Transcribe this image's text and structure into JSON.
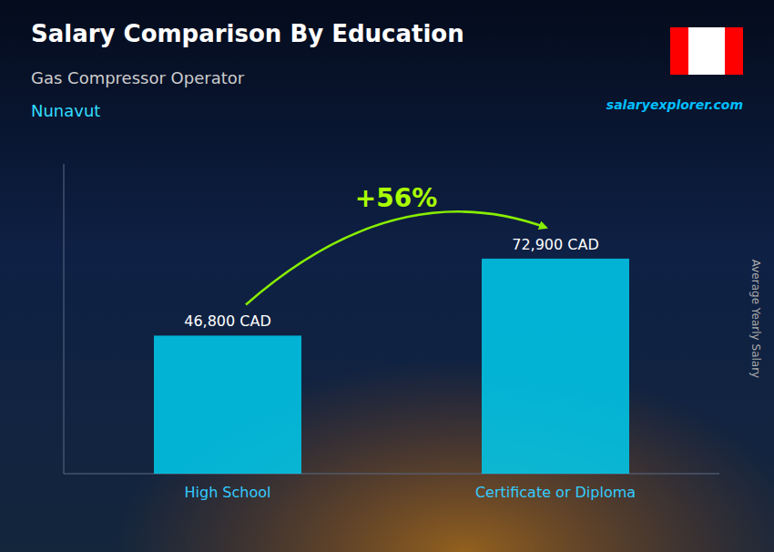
{
  "chart_data": {
    "type": "bar",
    "title": "Salary Comparison By Education",
    "subtitle": "Gas Compressor Operator",
    "region": "Nunavut",
    "source": "salaryexplorer.com",
    "y_label": "Average Yearly Salary",
    "annotation": "+56%",
    "categories": [
      "High School",
      "Certificate or Diploma"
    ],
    "values": [
      46800,
      72900
    ],
    "value_labels": [
      "46,800 CAD",
      "72,900 CAD"
    ],
    "data_labels": true,
    "color": "#00CCEE",
    "ylim": [
      0,
      105000
    ],
    "tick_labels": false,
    "grid": false
  }
}
